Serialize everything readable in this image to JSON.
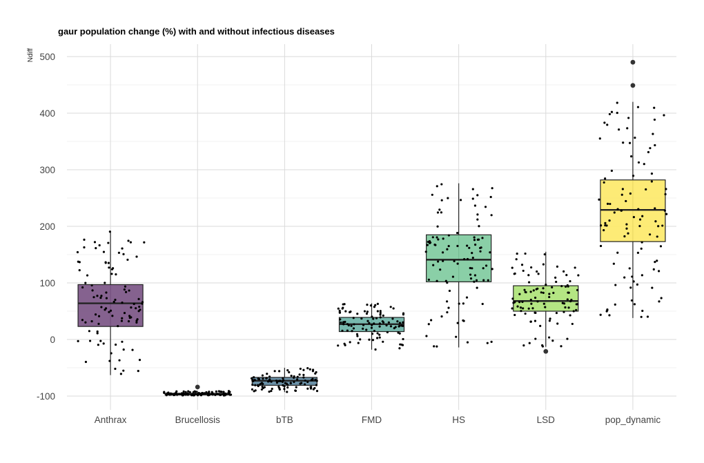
{
  "chart_data": {
    "type": "box",
    "title": "gaur population change (%) with and without infectious diseases",
    "xlabel": "",
    "ylabel": "Ndiff",
    "ylim": [
      -125,
      525
    ],
    "yticks": [
      -100,
      0,
      100,
      200,
      300,
      400,
      500
    ],
    "grid": true,
    "legend": "none",
    "categories": [
      "Anthrax",
      "Brucellosis",
      "bTB",
      "FMD",
      "HS",
      "LSD",
      "pop_dynamic"
    ],
    "fill_colors": [
      "#7b5585",
      "#3b5f82",
      "#5e88a0",
      "#6db3a7",
      "#80cba0",
      "#aee378",
      "#fde96a"
    ],
    "boxes": [
      {
        "name": "Anthrax",
        "q1": 23,
        "median": 64,
        "q3": 97,
        "whisker_low": -63,
        "whisker_high": 191,
        "outliers": []
      },
      {
        "name": "Brucellosis",
        "q1": -98,
        "median": -97,
        "q3": -95,
        "whisker_low": -99,
        "whisker_high": -91,
        "outliers": [
          -84
        ]
      },
      {
        "name": "bTB",
        "q1": -81,
        "median": -73,
        "q3": -67,
        "whisker_low": -93,
        "whisker_high": -50,
        "outliers": []
      },
      {
        "name": "FMD",
        "q1": 14,
        "median": 27,
        "q3": 39,
        "whisker_low": -18,
        "whisker_high": 64,
        "outliers": []
      },
      {
        "name": "HS",
        "q1": 102,
        "median": 141,
        "q3": 185,
        "whisker_low": -14,
        "whisker_high": 276,
        "outliers": []
      },
      {
        "name": "LSD",
        "q1": 50,
        "median": 68,
        "q3": 95,
        "whisker_low": -13,
        "whisker_high": 155,
        "outliers": [
          -21
        ]
      },
      {
        "name": "pop_dynamic",
        "q1": 173,
        "median": 229,
        "q3": 282,
        "whisker_low": 38,
        "whisker_high": 420,
        "outliers": [
          449,
          490
        ]
      }
    ]
  }
}
